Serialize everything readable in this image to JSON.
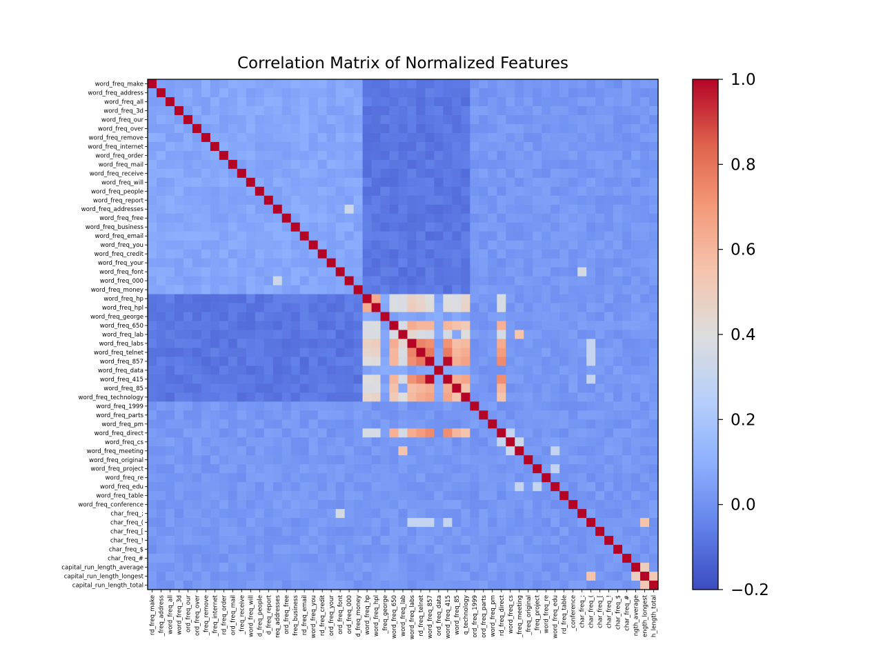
{
  "chart_data": {
    "type": "heatmap",
    "title": "Correlation Matrix of Normalized Features",
    "colormap": "coolwarm",
    "vmin": -0.2,
    "vmax": 1.0,
    "colorbar_ticks": [
      {
        "value": 1.0,
        "label": "1.0"
      },
      {
        "value": 0.8,
        "label": "0.8"
      },
      {
        "value": 0.6,
        "label": "0.6"
      },
      {
        "value": 0.4,
        "label": "0.4"
      },
      {
        "value": 0.2,
        "label": "0.2"
      },
      {
        "value": 0.0,
        "label": "0.0"
      },
      {
        "value": -0.2,
        "label": "−0.2"
      }
    ],
    "features": [
      "word_freq_make",
      "word_freq_address",
      "word_freq_all",
      "word_freq_3d",
      "word_freq_our",
      "word_freq_over",
      "word_freq_remove",
      "word_freq_internet",
      "word_freq_order",
      "word_freq_mail",
      "word_freq_receive",
      "word_freq_will",
      "word_freq_people",
      "word_freq_report",
      "word_freq_addresses",
      "word_freq_free",
      "word_freq_business",
      "word_freq_email",
      "word_freq_you",
      "word_freq_credit",
      "word_freq_your",
      "word_freq_font",
      "word_freq_000",
      "word_freq_money",
      "word_freq_hp",
      "word_freq_hpl",
      "word_freq_george",
      "word_freq_650",
      "word_freq_lab",
      "word_freq_labs",
      "word_freq_telnet",
      "word_freq_857",
      "word_freq_data",
      "word_freq_415",
      "word_freq_85",
      "word_freq_technology",
      "word_freq_1999",
      "word_freq_parts",
      "word_freq_pm",
      "word_freq_direct",
      "word_freq_cs",
      "word_freq_meeting",
      "word_freq_original",
      "word_freq_project",
      "word_freq_re",
      "word_freq_edu",
      "word_freq_table",
      "word_freq_conference",
      "char_freq_;",
      "char_freq_(",
      "char_freq_[",
      "char_freq_!",
      "char_freq_$",
      "char_freq_#",
      "capital_run_length_average",
      "capital_run_length_longest",
      "capital_run_length_total"
    ],
    "x_tick_labels": [
      "rd_freq_make",
      "_freq_address",
      "word_freq_all",
      "word_freq_3d",
      "ord_freq_our",
      "ord_freq_over",
      "_freq_remove",
      "_freq_internet",
      "rd_freq_order",
      "ord_freq_mail",
      "_freq_receive",
      "word_freq_will",
      "d_freq_people",
      "d_freq_report",
      "req_addresses",
      "ord_freq_free",
      "freq_business",
      "rd_freq_email",
      "word_freq_you",
      "rd_freq_credit",
      "ord_freq_your",
      "ord_freq_font",
      "ord_freq_000",
      "d_freq_money",
      "word_freq_hp",
      "word_freq_hpl",
      "_freq_george",
      "word_freq_650",
      "word_freq_lab",
      "word_freq_labs",
      "rd_freq_telnet",
      "word_freq_857",
      "ord_freq_data",
      "word_freq_415",
      "word_freq_85",
      "q_technology",
      "ord_freq_1999",
      "ord_freq_parts",
      "word_freq_pm",
      "rd_freq_direct",
      "word_freq_cs",
      "_freq_meeting",
      "_freq_original",
      "_freq_project",
      "word_freq_re",
      "word_freq_edu",
      "rd_freq_table",
      "_conference",
      "char_freq_;",
      "char_freq_(",
      "char_freq_[",
      "char_freq_!",
      "char_freq_$",
      "char_freq_#",
      "ngth_average",
      "ength_longest",
      "h_length_total"
    ],
    "strong_correlations": [
      {
        "a": "word_freq_857",
        "b": "word_freq_415",
        "value": 0.99
      },
      {
        "a": "word_freq_telnet",
        "b": "word_freq_857",
        "value": 0.79
      },
      {
        "a": "word_freq_telnet",
        "b": "word_freq_415",
        "value": 0.78
      },
      {
        "a": "word_freq_labs",
        "b": "word_freq_telnet",
        "value": 0.76
      },
      {
        "a": "word_freq_labs",
        "b": "word_freq_857",
        "value": 0.73
      },
      {
        "a": "word_freq_labs",
        "b": "word_freq_415",
        "value": 0.72
      },
      {
        "a": "word_freq_hp",
        "b": "word_freq_hpl",
        "value": 0.64
      },
      {
        "a": "word_freq_650",
        "b": "word_freq_labs",
        "value": 0.64
      },
      {
        "a": "word_freq_650",
        "b": "word_freq_telnet",
        "value": 0.6
      },
      {
        "a": "word_freq_650",
        "b": "word_freq_857",
        "value": 0.6
      },
      {
        "a": "word_freq_650",
        "b": "word_freq_415",
        "value": 0.6
      },
      {
        "a": "word_freq_650",
        "b": "word_freq_85",
        "value": 0.56
      },
      {
        "a": "word_freq_650",
        "b": "word_freq_technology",
        "value": 0.52
      },
      {
        "a": "word_freq_labs",
        "b": "word_freq_85",
        "value": 0.57
      },
      {
        "a": "word_freq_labs",
        "b": "word_freq_technology",
        "value": 0.59
      },
      {
        "a": "word_freq_telnet",
        "b": "word_freq_85",
        "value": 0.6
      },
      {
        "a": "word_freq_telnet",
        "b": "word_freq_technology",
        "value": 0.64
      },
      {
        "a": "word_freq_857",
        "b": "word_freq_85",
        "value": 0.63
      },
      {
        "a": "word_freq_857",
        "b": "word_freq_technology",
        "value": 0.67
      },
      {
        "a": "word_freq_415",
        "b": "word_freq_85",
        "value": 0.63
      },
      {
        "a": "word_freq_415",
        "b": "word_freq_technology",
        "value": 0.66
      },
      {
        "a": "word_freq_85",
        "b": "word_freq_technology",
        "value": 0.55
      },
      {
        "a": "word_freq_direct",
        "b": "word_freq_857",
        "value": 0.74
      },
      {
        "a": "word_freq_direct",
        "b": "word_freq_415",
        "value": 0.73
      },
      {
        "a": "word_freq_direct",
        "b": "word_freq_telnet",
        "value": 0.69
      },
      {
        "a": "word_freq_direct",
        "b": "word_freq_labs",
        "value": 0.64
      },
      {
        "a": "word_freq_direct",
        "b": "word_freq_650",
        "value": 0.62
      },
      {
        "a": "word_freq_direct",
        "b": "word_freq_85",
        "value": 0.6
      },
      {
        "a": "word_freq_direct",
        "b": "word_freq_technology",
        "value": 0.55
      },
      {
        "a": "word_freq_hp",
        "b": "word_freq_labs",
        "value": 0.48
      },
      {
        "a": "word_freq_hp",
        "b": "word_freq_telnet",
        "value": 0.45
      },
      {
        "a": "word_freq_hp",
        "b": "word_freq_857",
        "value": 0.4
      },
      {
        "a": "word_freq_hp",
        "b": "word_freq_415",
        "value": 0.4
      },
      {
        "a": "word_freq_hp",
        "b": "word_freq_technology",
        "value": 0.45
      },
      {
        "a": "word_freq_hp",
        "b": "word_freq_650",
        "value": 0.38
      },
      {
        "a": "word_freq_hp",
        "b": "word_freq_lab",
        "value": 0.38
      },
      {
        "a": "word_freq_hp",
        "b": "word_freq_85",
        "value": 0.38
      },
      {
        "a": "word_freq_hp",
        "b": "word_freq_direct",
        "value": 0.37
      },
      {
        "a": "word_freq_hpl",
        "b": "word_freq_labs",
        "value": 0.5
      },
      {
        "a": "word_freq_hpl",
        "b": "word_freq_telnet",
        "value": 0.47
      },
      {
        "a": "word_freq_hpl",
        "b": "word_freq_857",
        "value": 0.41
      },
      {
        "a": "word_freq_hpl",
        "b": "word_freq_415",
        "value": 0.41
      },
      {
        "a": "word_freq_hpl",
        "b": "word_freq_technology",
        "value": 0.47
      },
      {
        "a": "word_freq_hpl",
        "b": "word_freq_650",
        "value": 0.39
      },
      {
        "a": "word_freq_hpl",
        "b": "word_freq_lab",
        "value": 0.38
      },
      {
        "a": "word_freq_hpl",
        "b": "word_freq_85",
        "value": 0.39
      },
      {
        "a": "word_freq_hpl",
        "b": "word_freq_direct",
        "value": 0.37
      },
      {
        "a": "word_freq_lab",
        "b": "word_freq_labs",
        "value": 0.44
      },
      {
        "a": "word_freq_lab",
        "b": "word_freq_telnet",
        "value": 0.38
      },
      {
        "a": "word_freq_lab",
        "b": "word_freq_857",
        "value": 0.36
      },
      {
        "a": "word_freq_lab",
        "b": "word_freq_415",
        "value": 0.36
      },
      {
        "a": "word_freq_lab",
        "b": "word_freq_technology",
        "value": 0.4
      },
      {
        "a": "word_freq_lab",
        "b": "word_freq_meeting",
        "value": 0.55
      },
      {
        "a": "word_freq_lab",
        "b": "word_freq_direct",
        "value": 0.36
      },
      {
        "a": "word_freq_650",
        "b": "word_freq_lab",
        "value": 0.37
      },
      {
        "a": "word_freq_addresses",
        "b": "word_freq_000",
        "value": 0.33
      },
      {
        "a": "word_freq_font",
        "b": "char_freq_;",
        "value": 0.36
      },
      {
        "a": "capital_run_length_longest",
        "b": "capital_run_length_total",
        "value": 0.53
      },
      {
        "a": "capital_run_length_average",
        "b": "capital_run_length_longest",
        "value": 0.49
      },
      {
        "a": "char_freq_(",
        "b": "capital_run_length_longest",
        "value": 0.55
      },
      {
        "a": "word_freq_cs",
        "b": "word_freq_meeting",
        "value": 0.33
      },
      {
        "a": "word_freq_cs",
        "b": "word_freq_direct",
        "value": 0.3
      },
      {
        "a": "word_freq_project",
        "b": "word_freq_edu",
        "value": 0.3
      },
      {
        "a": "word_freq_edu",
        "b": "word_freq_meeting",
        "value": 0.3
      },
      {
        "a": "char_freq_(",
        "b": "word_freq_labs",
        "value": 0.3
      },
      {
        "a": "char_freq_(",
        "b": "word_freq_telnet",
        "value": 0.3
      },
      {
        "a": "char_freq_(",
        "b": "word_freq_857",
        "value": 0.3
      },
      {
        "a": "char_freq_(",
        "b": "word_freq_415",
        "value": 0.3
      }
    ]
  }
}
